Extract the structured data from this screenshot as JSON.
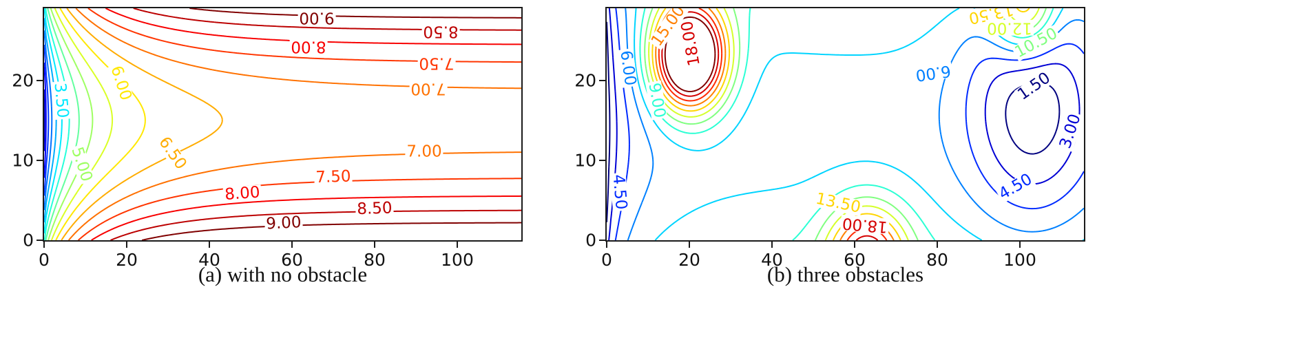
{
  "figure": {
    "background": "#ffffff",
    "spine_color": "#1a1a1a"
  },
  "chart_data": [
    {
      "type": "contour",
      "title": "(a) with no obstacle",
      "x_range": [
        0,
        115.5
      ],
      "y_range": [
        0,
        29
      ],
      "x_ticks": [
        0,
        20,
        40,
        60,
        80,
        100
      ],
      "y_ticks": [
        0,
        10,
        20
      ],
      "levels": {
        "min": 0.5,
        "max": 9.0,
        "step": 0.5
      },
      "colormap": "jet",
      "grid": false,
      "field": {
        "kind": "corridor",
        "offset": 6.8,
        "y_center": 15,
        "y_coef": 0.0135,
        "y_power": 2,
        "well_amp": 6.0,
        "well_scale": 9.0,
        "well_power": 0.7,
        "goal": null,
        "obstacles": []
      },
      "contour_labels": [
        {
          "text": "9.00",
          "level": 9.0,
          "x": 66,
          "y": 27.9,
          "rot": 180
        },
        {
          "text": "8.50",
          "level": 8.5,
          "x": 96,
          "y": 26.2,
          "rot": 180
        },
        {
          "text": "8.00",
          "level": 8.0,
          "x": 64,
          "y": 24.3,
          "rot": 180
        },
        {
          "text": "7.50",
          "level": 7.5,
          "x": 95,
          "y": 22.2,
          "rot": 180
        },
        {
          "text": "7.00",
          "level": 7.0,
          "x": 93,
          "y": 19.0,
          "rot": 180
        },
        {
          "text": "6.00",
          "level": 6.0,
          "x": 18.5,
          "y": 19.6,
          "rot": 72
        },
        {
          "text": "6.50",
          "level": 6.5,
          "x": 31,
          "y": 10.8,
          "rot": 55
        },
        {
          "text": "7.00",
          "level": 7.0,
          "x": 92,
          "y": 11.0,
          "rot": 0
        },
        {
          "text": "7.50",
          "level": 7.5,
          "x": 70,
          "y": 7.8,
          "rot": -2
        },
        {
          "text": "8.00",
          "level": 8.0,
          "x": 48,
          "y": 5.8,
          "rot": -4
        },
        {
          "text": "8.50",
          "level": 8.5,
          "x": 80,
          "y": 3.9,
          "rot": -2
        },
        {
          "text": "9.00",
          "level": 9.0,
          "x": 58,
          "y": 2.1,
          "rot": -3
        },
        {
          "text": "3.50",
          "level": 3.5,
          "x": 4,
          "y": 17.5,
          "rot": 85
        },
        {
          "text": "5.00",
          "level": 5.0,
          "x": 9,
          "y": 9.5,
          "rot": 72
        }
      ]
    },
    {
      "type": "contour",
      "title": "(b) three obstacles",
      "x_range": [
        0,
        115.5
      ],
      "y_range": [
        0,
        29
      ],
      "x_ticks": [
        0,
        20,
        40,
        60,
        80,
        100
      ],
      "y_ticks": [
        0,
        10,
        20
      ],
      "levels": {
        "min": 1.5,
        "max": 19.5,
        "step": 1.5
      },
      "colormap": "jet",
      "grid": false,
      "field": {
        "kind": "corridor",
        "offset": 7.0,
        "y_center": 15,
        "y_coef": 0.008,
        "y_power": 2,
        "well_amp": 6.8,
        "well_scale": 6.0,
        "well_power": 0.75,
        "goal": {
          "x": 103,
          "y": 17,
          "amp": 6.5,
          "spread": 272
        },
        "obstacles": [
          {
            "x": 20,
            "y": 23,
            "amp": 20,
            "sx": 80,
            "sy": 45
          },
          {
            "x": 63,
            "y": -2,
            "amp": 11,
            "sx": 90,
            "sy": 40
          },
          {
            "x": 101,
            "y": 29,
            "amp": 9,
            "sx": 60,
            "sy": 35
          }
        ]
      },
      "contour_labels": [
        {
          "text": "15.00",
          "level": 15.0,
          "x": 15,
          "y": 26.8,
          "rot": -55
        },
        {
          "text": "18.00",
          "level": 18.0,
          "x": 20.5,
          "y": 24.6,
          "rot": -100
        },
        {
          "text": "13.50",
          "level": 13.5,
          "x": 93,
          "y": 28.4,
          "rot": 168
        },
        {
          "text": "12.00",
          "level": 12.0,
          "x": 97.5,
          "y": 26.6,
          "rot": 180
        },
        {
          "text": "10.50",
          "level": 10.5,
          "x": 104,
          "y": 24.6,
          "rot": -28
        },
        {
          "text": "6.00",
          "level": 6.0,
          "x": 79,
          "y": 21.0,
          "rot": 172
        },
        {
          "text": "1.50",
          "level": 1.5,
          "x": 103.5,
          "y": 19.2,
          "rot": -35
        },
        {
          "text": "3.00",
          "level": 3.0,
          "x": 112.3,
          "y": 13.6,
          "rot": -72
        },
        {
          "text": "4.50",
          "level": 4.5,
          "x": 99,
          "y": 6.6,
          "rot": -30
        },
        {
          "text": "13.50",
          "level": 13.5,
          "x": 56,
          "y": 4.6,
          "rot": 12
        },
        {
          "text": "18.00",
          "level": 18.0,
          "x": 62.5,
          "y": 2.0,
          "rot": 185
        },
        {
          "text": "9.00",
          "level": 9.0,
          "x": 12,
          "y": 17.5,
          "rot": 80
        },
        {
          "text": "4.50",
          "level": 4.5,
          "x": 3,
          "y": 6.0,
          "rot": 85
        },
        {
          "text": "6.00",
          "level": 6.0,
          "x": 5,
          "y": 21.5,
          "rot": 82
        }
      ]
    }
  ]
}
